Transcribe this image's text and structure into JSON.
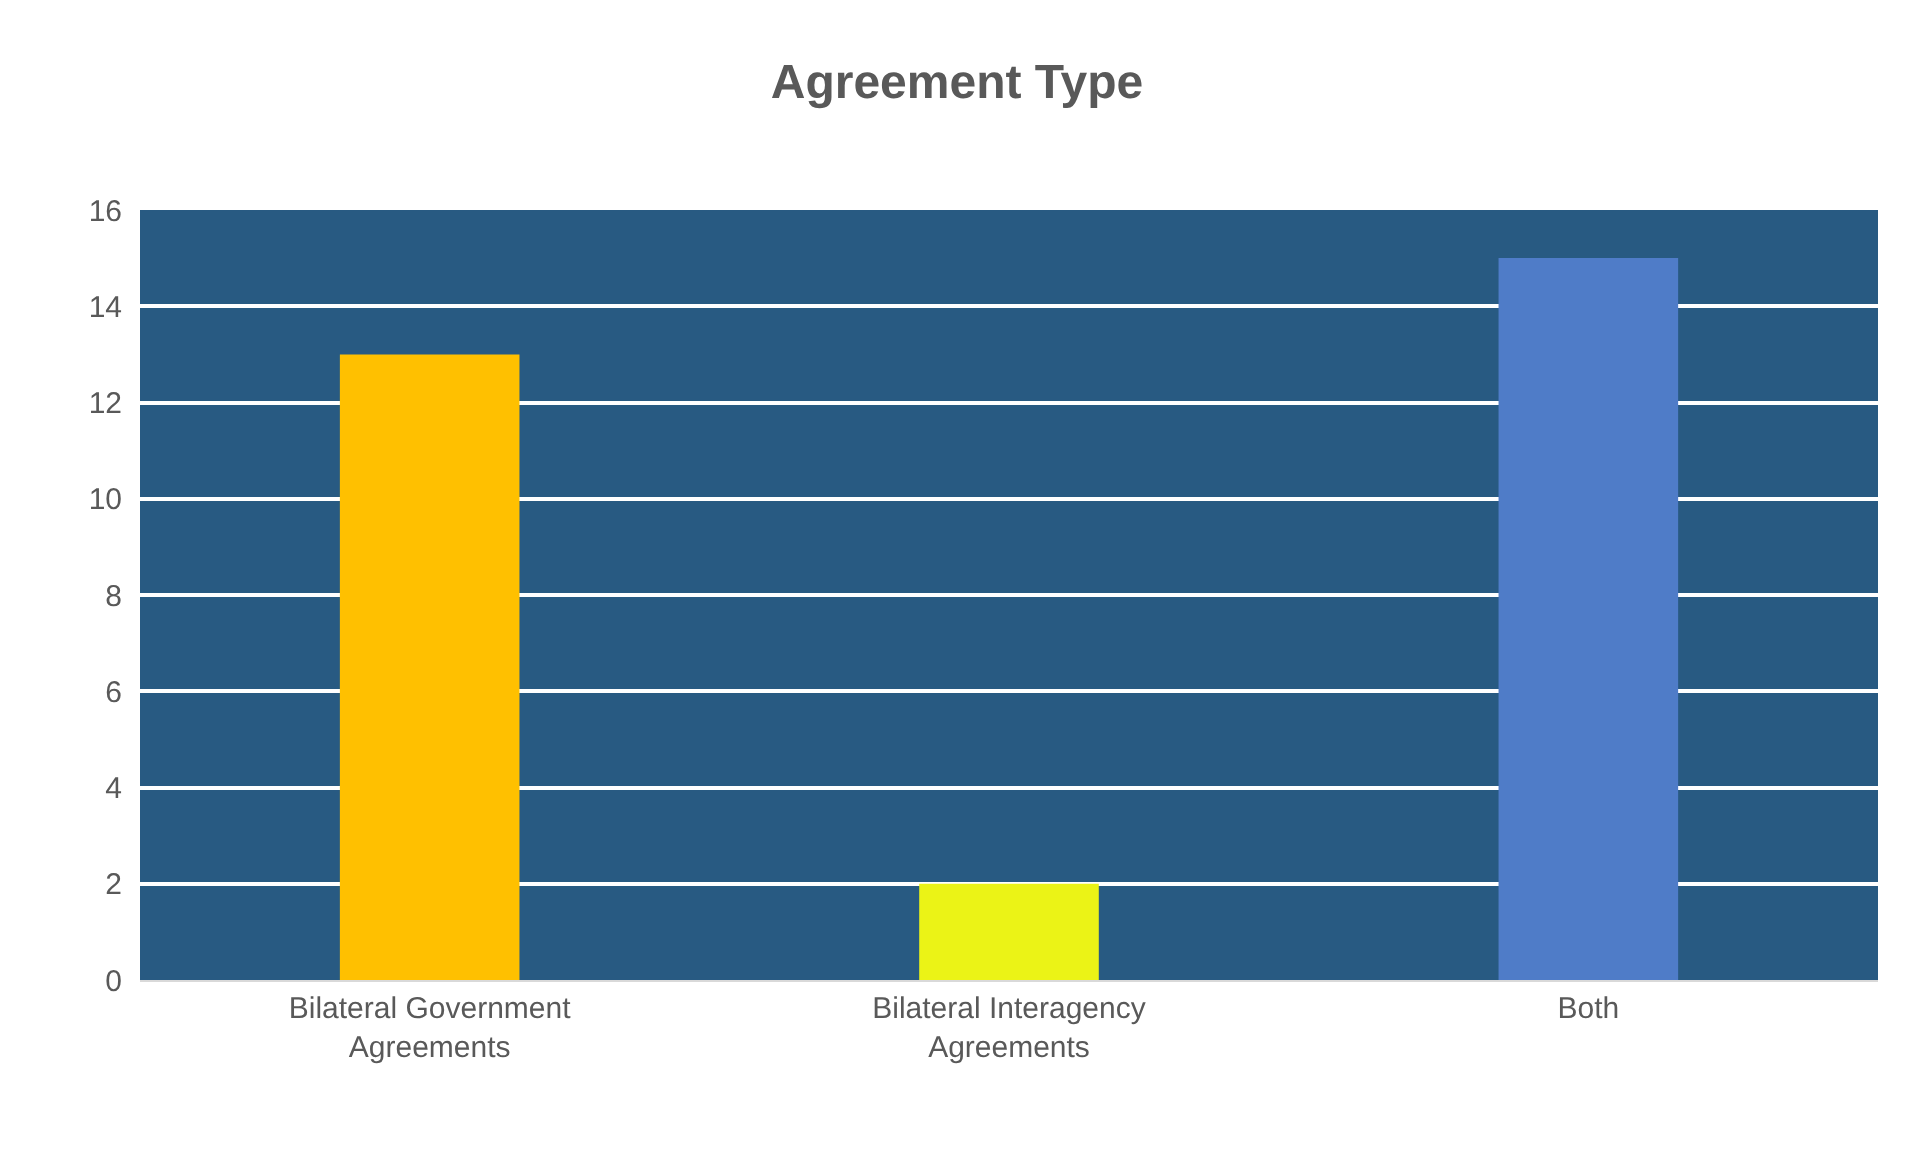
{
  "chart_data": {
    "type": "bar",
    "title": "Agreement Type",
    "categories": [
      "Bilateral Government Agreements",
      "Bilateral Interagency Agreements",
      "Both"
    ],
    "values": [
      13,
      2,
      15
    ],
    "colors": [
      "#ffc000",
      "#ebf316",
      "#4f7cc8"
    ],
    "ylim": [
      0,
      16
    ],
    "yticks": [
      0,
      2,
      4,
      6,
      8,
      10,
      12,
      14,
      16
    ],
    "grid": "y"
  }
}
